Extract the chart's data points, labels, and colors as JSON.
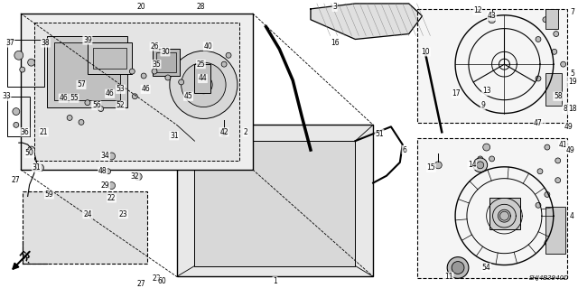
{
  "bg_color": "#ffffff",
  "diagram_code": "SHJ4B3940D",
  "lc": "#000000",
  "fs": 5.5
}
